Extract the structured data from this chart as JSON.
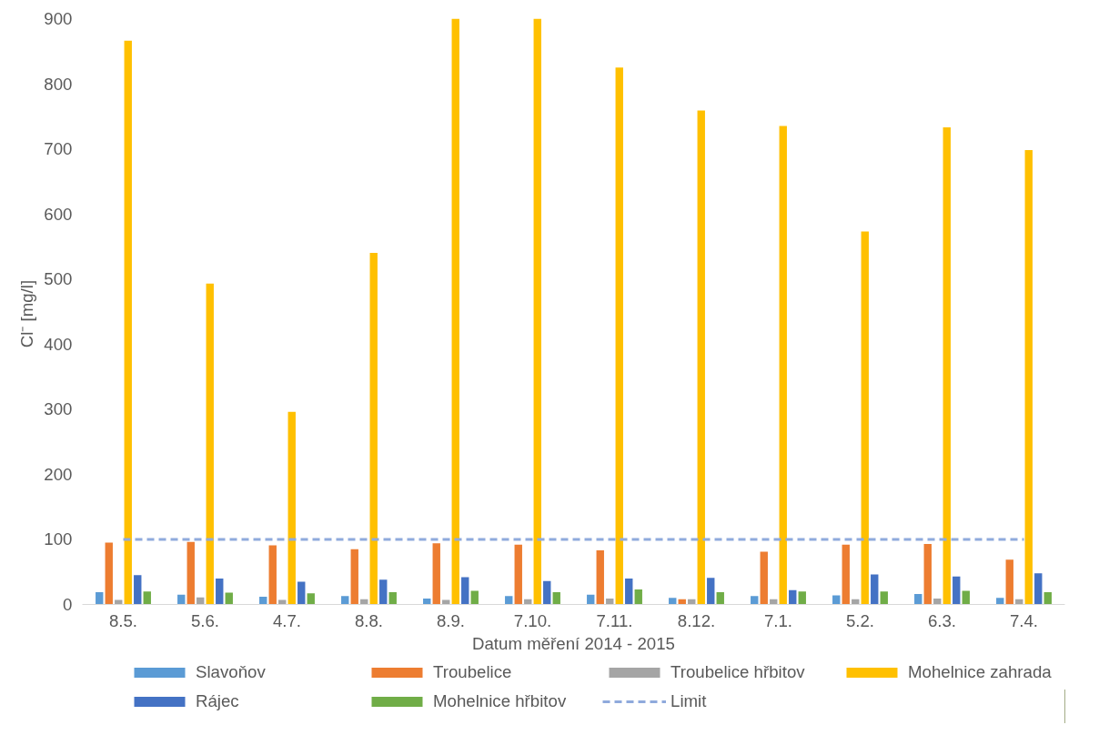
{
  "chart_data": {
    "type": "bar",
    "xlabel": "Datum měření 2014 - 2015",
    "ylabel": "Cl⁻  [mg/l]",
    "categories": [
      "8.5.",
      "5.6.",
      "4.7.",
      "8.8.",
      "8.9.",
      "7.10.",
      "7.11.",
      "8.12.",
      "7.1.",
      "5.2.",
      "6.3.",
      "7.4."
    ],
    "series": [
      {
        "name": "Slavoňov",
        "color": "#5b9bd5",
        "values": [
          19,
          15,
          12,
          13,
          9,
          13,
          15,
          10,
          13,
          14,
          16,
          10
        ]
      },
      {
        "name": "Troubelice",
        "color": "#ed7d31",
        "values": [
          95,
          96,
          91,
          85,
          94,
          92,
          83,
          8,
          81,
          92,
          93,
          69
        ]
      },
      {
        "name": "Troubelice hřbitov",
        "color": "#a5a5a5",
        "values": [
          7,
          11,
          7,
          8,
          7,
          8,
          9,
          8,
          8,
          8,
          9,
          8
        ]
      },
      {
        "name": "Mohelnice zahrada",
        "color": "#ffc000",
        "values": [
          866,
          493,
          296,
          540,
          900,
          900,
          825,
          759,
          735,
          573,
          733,
          698
        ]
      },
      {
        "name": "Rájec",
        "color": "#4472c4",
        "values": [
          45,
          40,
          35,
          38,
          42,
          36,
          40,
          41,
          22,
          46,
          43,
          48
        ]
      },
      {
        "name": "Mohelnice hřbitov",
        "color": "#70ad47",
        "values": [
          20,
          18,
          17,
          19,
          21,
          19,
          23,
          19,
          20,
          20,
          21,
          19
        ]
      }
    ],
    "ref_lines": [
      {
        "axis": "y",
        "value": 100,
        "label": "Limit",
        "color": "#8faadc",
        "line_style": "dashed"
      }
    ],
    "ylim": [
      0,
      900
    ],
    "yticks": [
      0,
      100,
      200,
      300,
      400,
      500,
      600,
      700,
      800,
      900
    ],
    "grid": false,
    "legend": "bottom"
  }
}
